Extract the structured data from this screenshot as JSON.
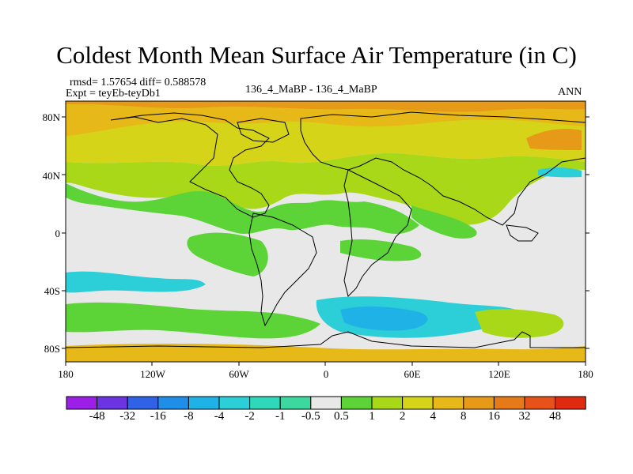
{
  "title": "Coldest Month Mean Surface Air Temperature (in C)",
  "stats_line": "rmsd= 1.57654  diff= 0.588578",
  "experiment": "Expt = teyEb-teyDb1",
  "period": "136_4_MaBP - 136_4_MaBP",
  "season": "ANN",
  "lat_labels": [
    "80N",
    "40N",
    "0",
    "40S",
    "80S"
  ],
  "lon_labels": [
    "180",
    "120W",
    "60W",
    "0",
    "60E",
    "120E",
    "180"
  ],
  "colorbar": {
    "boundaries": [
      "-48",
      "-32",
      "-16",
      "-8",
      "-4",
      "-2",
      "-1",
      "-0.5",
      "0.5",
      "1",
      "2",
      "4",
      "8",
      "16",
      "32",
      "48"
    ],
    "colors": [
      "#9b1fe6",
      "#6a34e0",
      "#2f62e4",
      "#1e8ee8",
      "#1fb2e6",
      "#2ccfd8",
      "#2fd8b8",
      "#3cd8a0",
      "#e8e8e8",
      "#5cd438",
      "#a8d818",
      "#d6d418",
      "#e6b818",
      "#e69a18",
      "#e67a18",
      "#e65218",
      "#e02a10"
    ]
  }
}
